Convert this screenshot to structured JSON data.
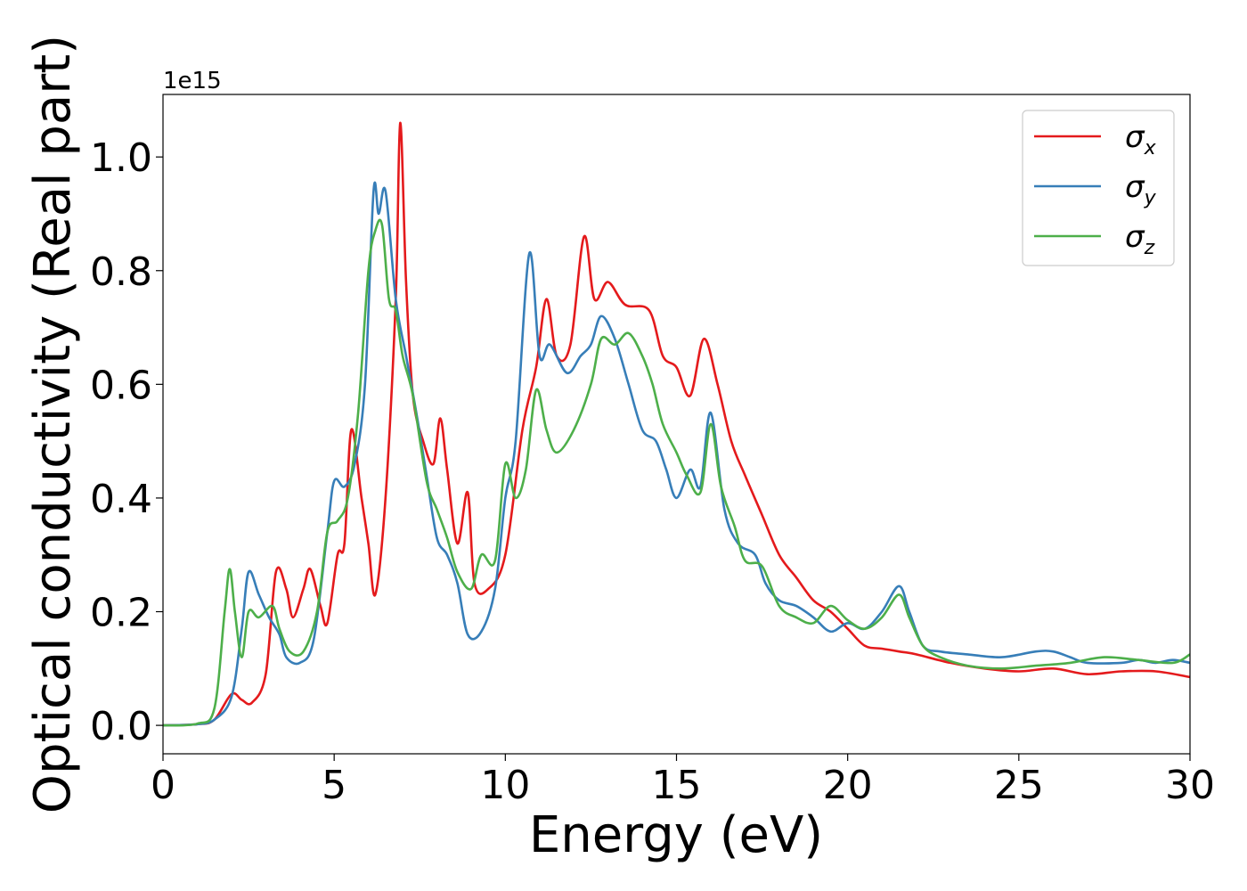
{
  "chart_data": {
    "type": "line",
    "xlabel": "Energy (eV)",
    "ylabel": "Optical conductivity (Real part)",
    "y_offset_label": "1e15",
    "xlim": [
      0,
      30
    ],
    "ylim": [
      -0.05,
      1.11
    ],
    "x_ticks": [
      0,
      5,
      10,
      15,
      20,
      25,
      30
    ],
    "x_tick_labels": [
      "0",
      "5",
      "10",
      "15",
      "20",
      "25",
      "30"
    ],
    "y_ticks": [
      0.0,
      0.2,
      0.4,
      0.6,
      0.8,
      1.0
    ],
    "y_tick_labels": [
      "0.0",
      "0.2",
      "0.4",
      "0.6",
      "0.8",
      "1.0"
    ],
    "grid": false,
    "legend_position": "top-right",
    "legend": [
      {
        "symbol": "σ",
        "subscript": "x",
        "color": "#e41a1c"
      },
      {
        "symbol": "σ",
        "subscript": "y",
        "color": "#377eb8"
      },
      {
        "symbol": "σ",
        "subscript": "z",
        "color": "#4daf4a"
      }
    ],
    "series": [
      {
        "name": "σx",
        "color": "#e41a1c",
        "points": [
          [
            0,
            0
          ],
          [
            1,
            0.002
          ],
          [
            1.5,
            0.01
          ],
          [
            2,
            0.055
          ],
          [
            2.3,
            0.045
          ],
          [
            2.6,
            0.04
          ],
          [
            3,
            0.09
          ],
          [
            3.3,
            0.27
          ],
          [
            3.6,
            0.24
          ],
          [
            3.8,
            0.19
          ],
          [
            4.1,
            0.24
          ],
          [
            4.3,
            0.275
          ],
          [
            4.6,
            0.21
          ],
          [
            4.8,
            0.18
          ],
          [
            5.1,
            0.3
          ],
          [
            5.3,
            0.32
          ],
          [
            5.5,
            0.52
          ],
          [
            5.8,
            0.4
          ],
          [
            6,
            0.32
          ],
          [
            6.2,
            0.23
          ],
          [
            6.5,
            0.4
          ],
          [
            6.8,
            0.75
          ],
          [
            6.93,
            1.06
          ],
          [
            7.1,
            0.78
          ],
          [
            7.3,
            0.58
          ],
          [
            7.6,
            0.5
          ],
          [
            7.9,
            0.46
          ],
          [
            8.1,
            0.54
          ],
          [
            8.3,
            0.45
          ],
          [
            8.6,
            0.32
          ],
          [
            8.9,
            0.41
          ],
          [
            9.1,
            0.25
          ],
          [
            9.5,
            0.24
          ],
          [
            10,
            0.3
          ],
          [
            10.5,
            0.52
          ],
          [
            10.9,
            0.63
          ],
          [
            11.2,
            0.75
          ],
          [
            11.5,
            0.65
          ],
          [
            11.9,
            0.67
          ],
          [
            12.3,
            0.86
          ],
          [
            12.6,
            0.75
          ],
          [
            13,
            0.78
          ],
          [
            13.5,
            0.74
          ],
          [
            14.2,
            0.73
          ],
          [
            14.6,
            0.65
          ],
          [
            15,
            0.63
          ],
          [
            15.4,
            0.58
          ],
          [
            15.8,
            0.68
          ],
          [
            16.2,
            0.6
          ],
          [
            16.6,
            0.5
          ],
          [
            17,
            0.44
          ],
          [
            17.5,
            0.37
          ],
          [
            18,
            0.3
          ],
          [
            18.5,
            0.26
          ],
          [
            19,
            0.22
          ],
          [
            19.5,
            0.2
          ],
          [
            20,
            0.17
          ],
          [
            20.5,
            0.14
          ],
          [
            21,
            0.135
          ],
          [
            21.5,
            0.13
          ],
          [
            22,
            0.125
          ],
          [
            23,
            0.11
          ],
          [
            24,
            0.1
          ],
          [
            25,
            0.095
          ],
          [
            26,
            0.1
          ],
          [
            27,
            0.09
          ],
          [
            28,
            0.095
          ],
          [
            29,
            0.095
          ],
          [
            30,
            0.085
          ]
        ]
      },
      {
        "name": "σy",
        "color": "#377eb8",
        "points": [
          [
            0,
            0
          ],
          [
            1,
            0.002
          ],
          [
            1.5,
            0.01
          ],
          [
            2,
            0.05
          ],
          [
            2.3,
            0.17
          ],
          [
            2.5,
            0.27
          ],
          [
            2.8,
            0.23
          ],
          [
            3.1,
            0.19
          ],
          [
            3.4,
            0.16
          ],
          [
            3.6,
            0.12
          ],
          [
            4,
            0.11
          ],
          [
            4.4,
            0.15
          ],
          [
            4.8,
            0.34
          ],
          [
            5,
            0.43
          ],
          [
            5.3,
            0.42
          ],
          [
            5.6,
            0.46
          ],
          [
            5.9,
            0.6
          ],
          [
            6.15,
            0.94
          ],
          [
            6.3,
            0.9
          ],
          [
            6.5,
            0.94
          ],
          [
            6.8,
            0.75
          ],
          [
            7.1,
            0.65
          ],
          [
            7.4,
            0.55
          ],
          [
            7.7,
            0.44
          ],
          [
            8,
            0.33
          ],
          [
            8.3,
            0.3
          ],
          [
            8.6,
            0.25
          ],
          [
            8.9,
            0.16
          ],
          [
            9.3,
            0.165
          ],
          [
            9.7,
            0.24
          ],
          [
            10,
            0.4
          ],
          [
            10.3,
            0.5
          ],
          [
            10.7,
            0.83
          ],
          [
            11,
            0.65
          ],
          [
            11.3,
            0.67
          ],
          [
            11.8,
            0.62
          ],
          [
            12.2,
            0.65
          ],
          [
            12.5,
            0.67
          ],
          [
            12.8,
            0.72
          ],
          [
            13.2,
            0.68
          ],
          [
            13.6,
            0.6
          ],
          [
            14,
            0.52
          ],
          [
            14.4,
            0.5
          ],
          [
            14.7,
            0.45
          ],
          [
            15,
            0.4
          ],
          [
            15.4,
            0.45
          ],
          [
            15.7,
            0.42
          ],
          [
            16,
            0.55
          ],
          [
            16.4,
            0.38
          ],
          [
            16.8,
            0.32
          ],
          [
            17.3,
            0.3
          ],
          [
            17.6,
            0.25
          ],
          [
            18,
            0.22
          ],
          [
            18.5,
            0.21
          ],
          [
            19,
            0.19
          ],
          [
            19.5,
            0.165
          ],
          [
            20,
            0.18
          ],
          [
            20.5,
            0.17
          ],
          [
            21,
            0.2
          ],
          [
            21.5,
            0.245
          ],
          [
            21.8,
            0.2
          ],
          [
            22.2,
            0.14
          ],
          [
            22.7,
            0.13
          ],
          [
            23.5,
            0.125
          ],
          [
            24.5,
            0.12
          ],
          [
            25.5,
            0.13
          ],
          [
            26,
            0.13
          ],
          [
            26.5,
            0.12
          ],
          [
            27,
            0.11
          ],
          [
            28,
            0.11
          ],
          [
            28.5,
            0.115
          ],
          [
            29,
            0.11
          ],
          [
            29.5,
            0.115
          ],
          [
            30,
            0.11
          ]
        ]
      },
      {
        "name": "σz",
        "color": "#4daf4a",
        "points": [
          [
            0,
            0
          ],
          [
            1,
            0.003
          ],
          [
            1.5,
            0.03
          ],
          [
            1.8,
            0.2
          ],
          [
            1.95,
            0.275
          ],
          [
            2.1,
            0.2
          ],
          [
            2.3,
            0.12
          ],
          [
            2.5,
            0.2
          ],
          [
            2.8,
            0.19
          ],
          [
            3.2,
            0.21
          ],
          [
            3.4,
            0.17
          ],
          [
            3.7,
            0.13
          ],
          [
            4.1,
            0.13
          ],
          [
            4.5,
            0.2
          ],
          [
            4.8,
            0.34
          ],
          [
            5.1,
            0.36
          ],
          [
            5.4,
            0.4
          ],
          [
            5.7,
            0.55
          ],
          [
            6,
            0.8
          ],
          [
            6.2,
            0.87
          ],
          [
            6.4,
            0.88
          ],
          [
            6.6,
            0.75
          ],
          [
            6.8,
            0.73
          ],
          [
            7,
            0.65
          ],
          [
            7.3,
            0.58
          ],
          [
            7.7,
            0.43
          ],
          [
            8,
            0.38
          ],
          [
            8.3,
            0.33
          ],
          [
            8.6,
            0.27
          ],
          [
            9,
            0.24
          ],
          [
            9.3,
            0.3
          ],
          [
            9.7,
            0.29
          ],
          [
            10,
            0.46
          ],
          [
            10.3,
            0.4
          ],
          [
            10.6,
            0.45
          ],
          [
            10.9,
            0.59
          ],
          [
            11.2,
            0.52
          ],
          [
            11.5,
            0.48
          ],
          [
            12,
            0.52
          ],
          [
            12.5,
            0.6
          ],
          [
            12.8,
            0.68
          ],
          [
            13.2,
            0.67
          ],
          [
            13.6,
            0.69
          ],
          [
            14,
            0.65
          ],
          [
            14.3,
            0.6
          ],
          [
            14.6,
            0.53
          ],
          [
            15,
            0.48
          ],
          [
            15.3,
            0.44
          ],
          [
            15.7,
            0.41
          ],
          [
            16,
            0.53
          ],
          [
            16.3,
            0.42
          ],
          [
            16.7,
            0.35
          ],
          [
            17,
            0.29
          ],
          [
            17.5,
            0.28
          ],
          [
            18,
            0.21
          ],
          [
            18.5,
            0.19
          ],
          [
            19,
            0.18
          ],
          [
            19.5,
            0.21
          ],
          [
            20,
            0.185
          ],
          [
            20.5,
            0.17
          ],
          [
            21,
            0.19
          ],
          [
            21.5,
            0.23
          ],
          [
            21.8,
            0.19
          ],
          [
            22.2,
            0.14
          ],
          [
            22.7,
            0.12
          ],
          [
            23.5,
            0.105
          ],
          [
            24.5,
            0.1
          ],
          [
            25.5,
            0.105
          ],
          [
            26.5,
            0.11
          ],
          [
            27.5,
            0.12
          ],
          [
            28.5,
            0.115
          ],
          [
            29.5,
            0.11
          ],
          [
            30,
            0.125
          ]
        ]
      }
    ]
  }
}
